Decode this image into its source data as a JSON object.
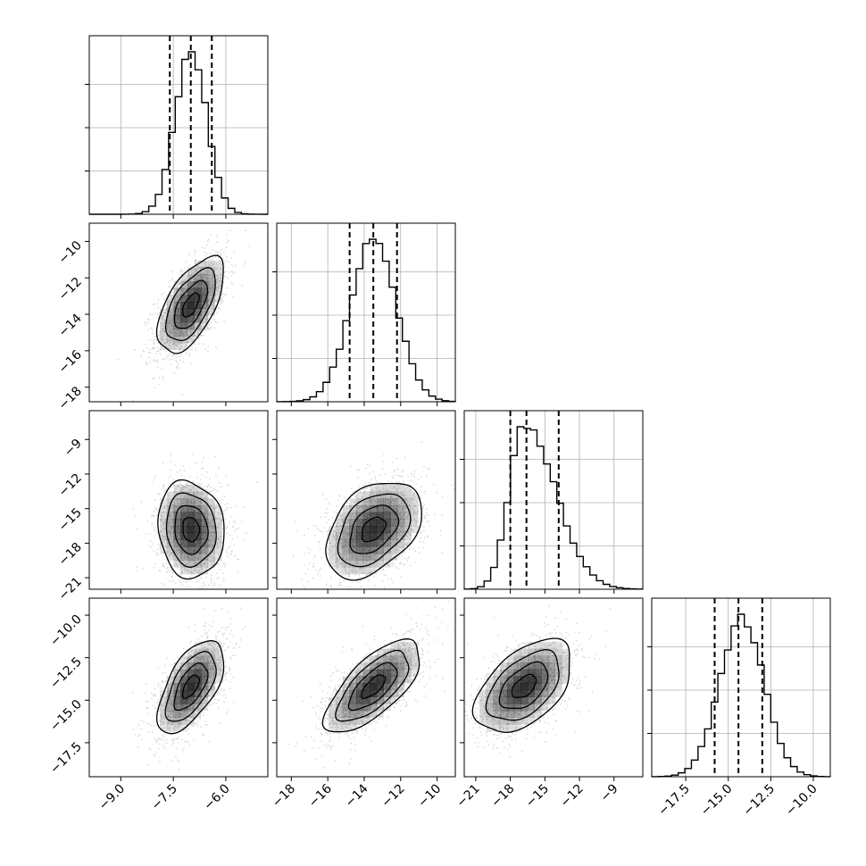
{
  "chart_data": {
    "type": "corner",
    "parameters": [
      {
        "range": [
          -9.9,
          -4.8
        ],
        "ticks": [
          "-9.0",
          "-7.5",
          "-6.0"
        ],
        "tick_values": [
          -9.0,
          -7.5,
          -6.0
        ],
        "quantiles": [
          -7.6,
          -7.0,
          -6.4
        ],
        "mean": -7.0,
        "sd": 0.45
      },
      {
        "range": [
          -18.8,
          -9.0
        ],
        "ticks": [
          "-18",
          "-16",
          "-14",
          "-12",
          "-10"
        ],
        "tick_values": [
          -18,
          -16,
          -14,
          -12,
          -10
        ],
        "quantiles": [
          -14.8,
          -13.5,
          -12.2
        ],
        "mean": -13.5,
        "sd": 1.25
      },
      {
        "range": [
          -22.0,
          -6.5
        ],
        "ticks": [
          "-21",
          "-18",
          "-15",
          "-12",
          "-9"
        ],
        "tick_values": [
          -21,
          -18,
          -15,
          -12,
          -9
        ],
        "quantiles": [
          -18.0,
          -16.6,
          -13.8
        ],
        "mean": -16.4,
        "sd": 2.0
      },
      {
        "range": [
          -19.5,
          -9.0
        ],
        "ticks": [
          "-17.5",
          "-15.0",
          "-12.5",
          "-10.0"
        ],
        "tick_values": [
          -17.5,
          -15.0,
          -12.5,
          -10.0
        ],
        "quantiles": [
          -15.8,
          -14.4,
          -13.0
        ],
        "mean": -14.4,
        "sd": 1.3
      }
    ],
    "diagonal_histograms": [
      {
        "param": 0,
        "bins": 27,
        "peak_at": -7.0
      },
      {
        "param": 1,
        "bins": 27,
        "peak_at": -13.5
      },
      {
        "param": 2,
        "bins": 27,
        "peak_at": -16.8
      },
      {
        "param": 3,
        "bins": 27,
        "peak_at": -14.2
      }
    ],
    "contour_panels": [
      {
        "row": 1,
        "col": 0,
        "center": [
          -7.0,
          -13.5
        ],
        "sx": 0.45,
        "sy": 1.25,
        "rho": 0.6
      },
      {
        "row": 2,
        "col": 0,
        "center": [
          -7.0,
          -16.8
        ],
        "sx": 0.45,
        "sy": 2.0,
        "rho": -0.1
      },
      {
        "row": 2,
        "col": 1,
        "center": [
          -13.5,
          -16.8
        ],
        "sx": 1.25,
        "sy": 2.0,
        "rho": 0.4
      },
      {
        "row": 3,
        "col": 0,
        "center": [
          -7.0,
          -14.2
        ],
        "sx": 0.45,
        "sy": 1.3,
        "rho": 0.6
      },
      {
        "row": 3,
        "col": 1,
        "center": [
          -13.5,
          -14.2
        ],
        "sx": 1.25,
        "sy": 1.3,
        "rho": 0.7
      },
      {
        "row": 3,
        "col": 2,
        "center": [
          -16.8,
          -14.2
        ],
        "sx": 2.0,
        "sy": 1.3,
        "rho": 0.5
      }
    ],
    "grid": true,
    "colors": {
      "line": "#000000",
      "grid": "#b0b0b0",
      "density": "#000000",
      "points": "#888888"
    }
  }
}
